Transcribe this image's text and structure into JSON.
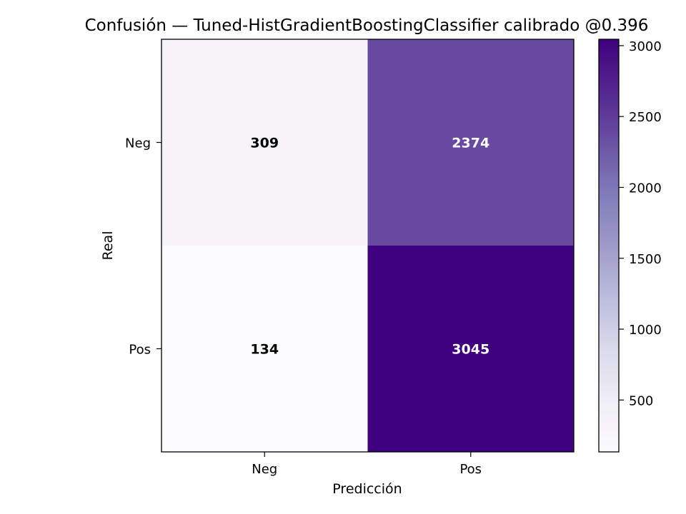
{
  "chart_data": {
    "type": "heatmap",
    "title": "Confusión — Tuned-HistGradientBoostingClassifier calibrado @0.396",
    "xlabel": "Predicción",
    "ylabel": "Real",
    "x_categories": [
      "Neg",
      "Pos"
    ],
    "y_categories": [
      "Neg",
      "Pos"
    ],
    "values": [
      [
        309,
        2374
      ],
      [
        134,
        3045
      ]
    ],
    "colormap": "Purples",
    "colorbar": {
      "min": 134,
      "max": 3045,
      "ticks": [
        500,
        1000,
        1500,
        2000,
        2500,
        3000
      ],
      "tick_labels": [
        "500",
        "1000",
        "1500",
        "2000",
        "2500",
        "3000"
      ]
    },
    "text_colors": {
      "dark": "#000000",
      "light": "#ffffff"
    }
  }
}
